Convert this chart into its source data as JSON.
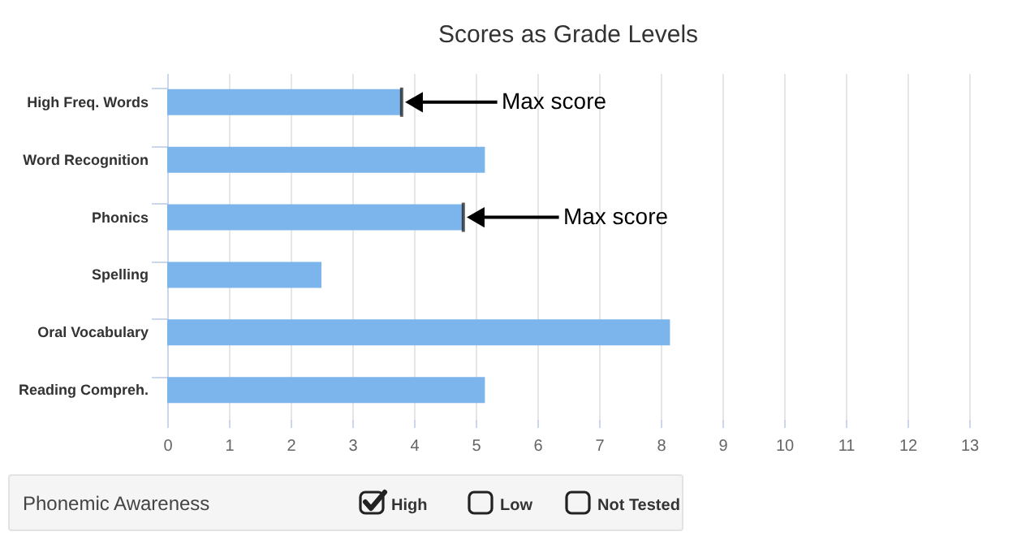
{
  "chart_data": [
    {
      "type": "bar",
      "orientation": "horizontal",
      "title": "Scores as Grade Levels",
      "categories": [
        "High Freq. Words",
        "Word Recognition",
        "Phonics",
        "Spelling",
        "Oral Vocabulary",
        "Reading Compreh."
      ],
      "values": [
        3.8,
        5.15,
        4.8,
        2.5,
        8.15,
        5.15
      ],
      "color": "#7cb5ec",
      "xlim": [
        0,
        13
      ],
      "xticks": [
        0,
        1,
        2,
        3,
        4,
        5,
        6,
        7,
        8,
        9,
        10,
        11,
        12,
        13
      ],
      "grid": "x",
      "annotations": [
        {
          "text": "Max score",
          "x": 3.8,
          "y": "High Freq. Words"
        },
        {
          "text": "Max score",
          "x": 4.8,
          "y": "Phonics"
        }
      ]
    },
    {
      "type": "other",
      "title": "Phonemic Awareness",
      "categories": [
        "High",
        "Low",
        "Not Tested"
      ]
    }
  ]
}
